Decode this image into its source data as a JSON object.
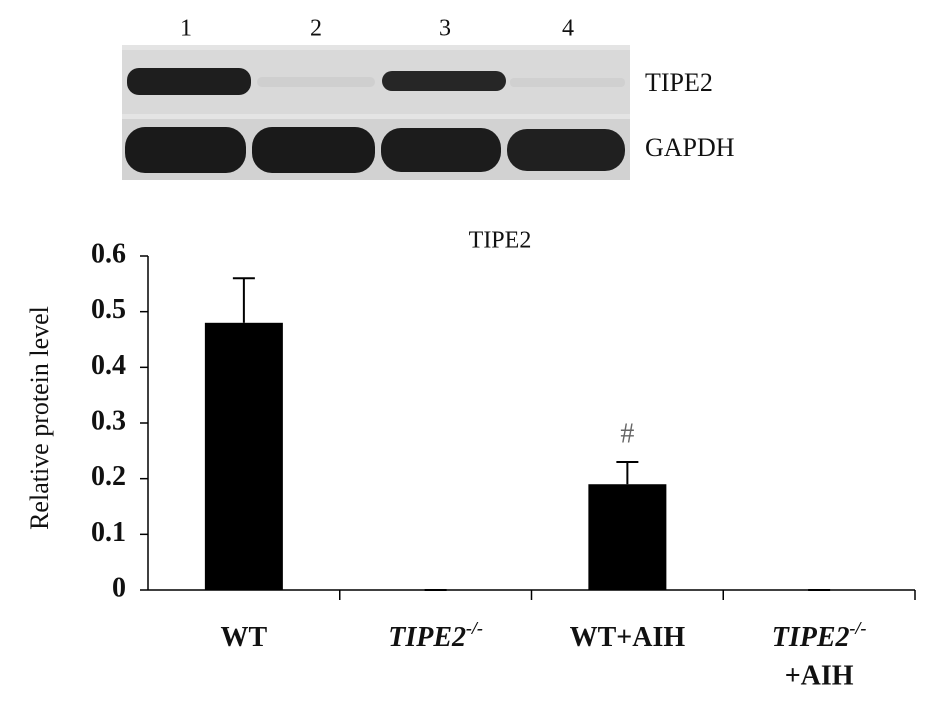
{
  "blot": {
    "lanes": [
      "1",
      "2",
      "3",
      "4"
    ],
    "rows": [
      "TIPE2",
      "GAPDH"
    ]
  },
  "chart_data": {
    "type": "bar",
    "title": "TIPE2",
    "y_label": "Relative protein level",
    "categories": [
      {
        "text": "WT"
      },
      {
        "text": "TIPE2",
        "sup": "-/-"
      },
      {
        "text": "WT+AIH"
      },
      {
        "text": "TIPE2",
        "sup": "-/-",
        "line2": "+AIH"
      }
    ],
    "values": [
      0.48,
      0,
      0.19,
      0
    ],
    "errors": [
      0.08,
      0,
      0.04,
      0
    ],
    "value_markers": [
      null,
      null,
      "#",
      null
    ],
    "color": "#000000",
    "ylim": [
      0,
      0.6
    ],
    "yticks": [
      0,
      0.1,
      0.2,
      0.3,
      0.4,
      0.5,
      0.6
    ]
  }
}
